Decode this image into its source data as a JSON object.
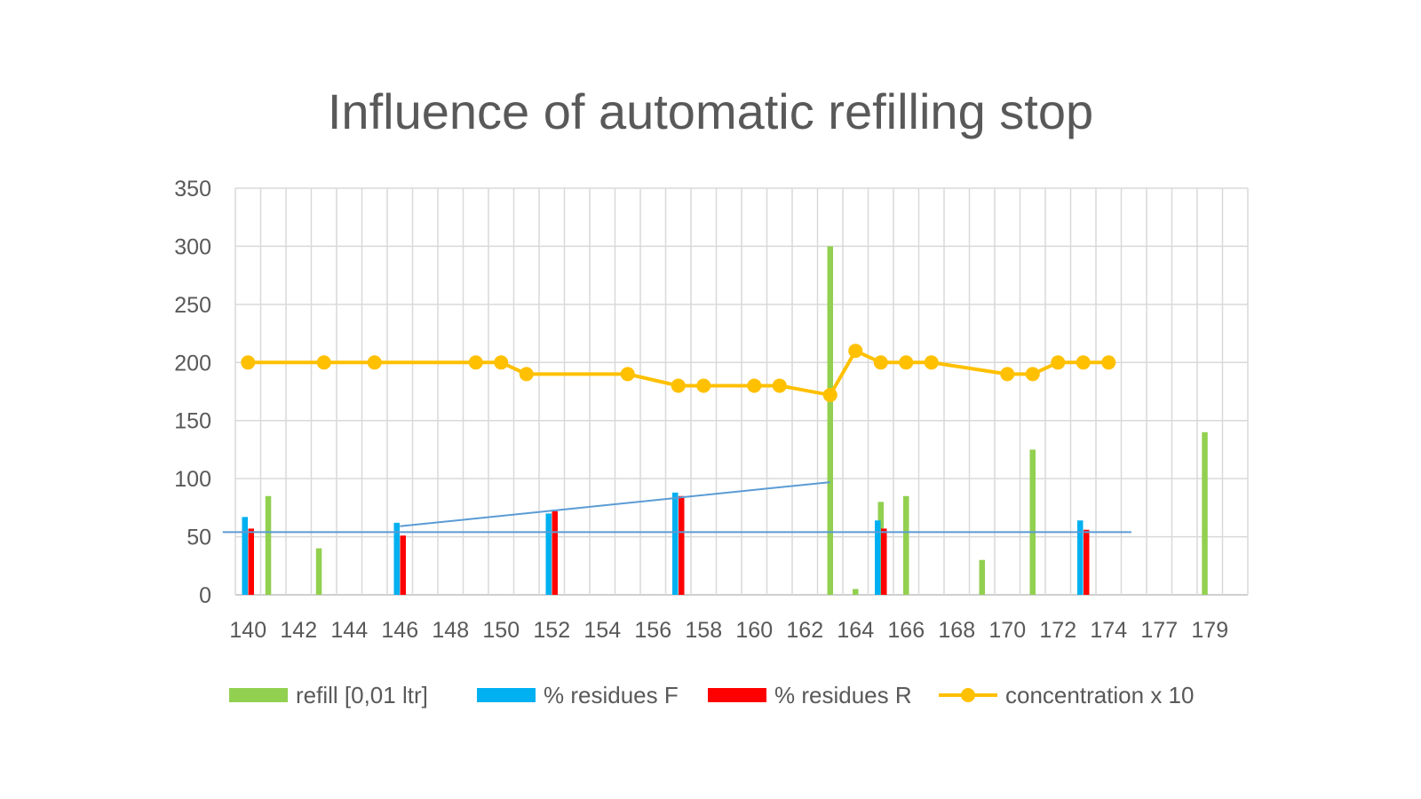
{
  "chart_data": {
    "type": "bar",
    "title": "Influence of automatic refilling stop",
    "xlabel": "",
    "ylabel": "",
    "ylim": [
      0,
      350
    ],
    "yticks": [
      0,
      50,
      100,
      150,
      200,
      250,
      300,
      350
    ],
    "xlim": [
      139.5,
      179.5
    ],
    "xticks": [
      "140",
      "142",
      "144",
      "146",
      "148",
      "150",
      "152",
      "154",
      "156",
      "158",
      "160",
      "162",
      "164",
      "166",
      "168",
      "170",
      "172",
      "174",
      "177",
      "179"
    ],
    "grid": true,
    "legend_position": "bottom",
    "series": [
      {
        "name": "refill [0,01 ltr]",
        "kind": "bar",
        "color": "#92D050",
        "points": [
          [
            140.8,
            85
          ],
          [
            142.8,
            40
          ],
          [
            163.0,
            300
          ],
          [
            164.0,
            5
          ],
          [
            165.0,
            80
          ],
          [
            166.0,
            85
          ],
          [
            169.0,
            30
          ],
          [
            171.0,
            125
          ],
          [
            177.8,
            140
          ]
        ]
      },
      {
        "name": "% residues F",
        "kind": "bar",
        "color": "#00B0F0",
        "points": [
          [
            140.0,
            67
          ],
          [
            146.0,
            62
          ],
          [
            152.0,
            70
          ],
          [
            157.0,
            88
          ],
          [
            165.0,
            64
          ],
          [
            173.0,
            64
          ]
        ]
      },
      {
        "name": "% residues R",
        "kind": "bar",
        "color": "#FF0000",
        "points": [
          [
            140.0,
            57
          ],
          [
            146.0,
            51
          ],
          [
            152.0,
            72
          ],
          [
            157.0,
            85
          ],
          [
            165.0,
            57
          ],
          [
            173.0,
            56
          ]
        ]
      },
      {
        "name": "concentration x 10",
        "kind": "line",
        "color": "#FFC000",
        "points": [
          [
            140,
            200
          ],
          [
            143,
            200
          ],
          [
            145,
            200
          ],
          [
            149,
            200
          ],
          [
            150,
            200
          ],
          [
            151,
            190
          ],
          [
            155,
            190
          ],
          [
            157,
            180
          ],
          [
            158,
            180
          ],
          [
            160,
            180
          ],
          [
            161,
            180
          ],
          [
            163,
            172
          ],
          [
            164,
            210
          ],
          [
            165,
            200
          ],
          [
            166,
            200
          ],
          [
            167,
            200
          ],
          [
            170,
            190
          ],
          [
            171,
            190
          ],
          [
            172,
            200
          ],
          [
            173,
            200
          ],
          [
            174,
            200
          ]
        ]
      }
    ],
    "annotations": [
      {
        "kind": "line",
        "color": "#5B9BD5",
        "points": [
          [
            139.0,
            54
          ],
          [
            174.9,
            54
          ]
        ]
      },
      {
        "kind": "line",
        "color": "#5B9BD5",
        "points": [
          [
            146.0,
            59
          ],
          [
            163.0,
            97
          ]
        ]
      }
    ]
  }
}
